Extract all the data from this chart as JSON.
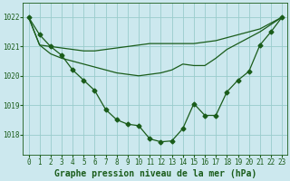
{
  "title": "Graphe pression niveau de la mer (hPa)",
  "background_color": "#cce8ee",
  "grid_color": "#99cccc",
  "line_color": "#1a5c1a",
  "x_ticks": [
    0,
    1,
    2,
    3,
    4,
    5,
    6,
    7,
    8,
    9,
    10,
    11,
    12,
    13,
    14,
    15,
    16,
    17,
    18,
    19,
    20,
    21,
    22,
    23
  ],
  "y_ticks": [
    1018,
    1019,
    1020,
    1021,
    1022
  ],
  "ylim": [
    1017.3,
    1022.5
  ],
  "xlim": [
    -0.5,
    23.5
  ],
  "series1_y": [
    1022.0,
    1021.4,
    1021.0,
    1020.7,
    1020.2,
    1019.85,
    1019.5,
    1018.85,
    1018.5,
    1018.35,
    1018.3,
    1017.85,
    1017.75,
    1017.78,
    1018.2,
    1019.05,
    1018.65,
    1018.65,
    1019.45,
    1019.85,
    1020.15,
    1021.05,
    1021.5,
    1022.0
  ],
  "series2_y": [
    1022.0,
    1021.05,
    1021.0,
    1020.95,
    1020.9,
    1020.85,
    1020.85,
    1020.9,
    1020.95,
    1021.0,
    1021.05,
    1021.1,
    1021.1,
    1021.1,
    1021.1,
    1021.1,
    1021.15,
    1021.2,
    1021.3,
    1021.4,
    1021.5,
    1021.6,
    1021.8,
    1022.0
  ],
  "series3_y": [
    1022.0,
    1021.05,
    1020.75,
    1020.6,
    1020.5,
    1020.4,
    1020.3,
    1020.2,
    1020.1,
    1020.05,
    1020.0,
    1020.05,
    1020.1,
    1020.2,
    1020.4,
    1020.35,
    1020.35,
    1020.6,
    1020.9,
    1021.1,
    1021.3,
    1021.5,
    1021.75,
    1022.0
  ],
  "marker": "D",
  "marker_size": 2.5,
  "linewidth": 0.9,
  "title_fontsize": 7.0,
  "tick_fontsize": 5.5
}
